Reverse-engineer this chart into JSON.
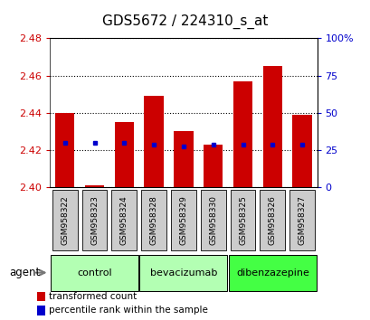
{
  "title": "GDS5672 / 224310_s_at",
  "samples": [
    "GSM958322",
    "GSM958323",
    "GSM958324",
    "GSM958328",
    "GSM958329",
    "GSM958330",
    "GSM958325",
    "GSM958326",
    "GSM958327"
  ],
  "transformed_counts": [
    2.44,
    2.401,
    2.435,
    2.449,
    2.43,
    2.423,
    2.457,
    2.465,
    2.439
  ],
  "percentile_values": [
    2.424,
    2.424,
    2.424,
    2.423,
    2.422,
    2.423,
    2.423,
    2.423,
    2.423
  ],
  "bar_bottom": 2.4,
  "ylim_left": [
    2.4,
    2.48
  ],
  "ylim_right": [
    0,
    100
  ],
  "yticks_left": [
    2.4,
    2.42,
    2.44,
    2.46,
    2.48
  ],
  "yticks_right": [
    0,
    25,
    50,
    75,
    100
  ],
  "ytick_labels_right": [
    "0",
    "25",
    "50",
    "75",
    "100%"
  ],
  "groups": [
    {
      "name": "control",
      "indices": [
        0,
        1,
        2
      ],
      "color": "#b3ffb3"
    },
    {
      "name": "bevacizumab",
      "indices": [
        3,
        4,
        5
      ],
      "color": "#b3ffb3"
    },
    {
      "name": "dibenzazepine",
      "indices": [
        6,
        7,
        8
      ],
      "color": "#44ff44"
    }
  ],
  "bar_color": "#cc0000",
  "dot_color": "#0000cc",
  "agent_label": "agent",
  "legend_bar_label": "transformed count",
  "legend_dot_label": "percentile rank within the sample",
  "background_color": "#ffffff",
  "grid_color": "#000000",
  "tick_color_left": "#cc0000",
  "tick_color_right": "#0000cc",
  "sample_box_color": "#cccccc",
  "title_fontsize": 11
}
